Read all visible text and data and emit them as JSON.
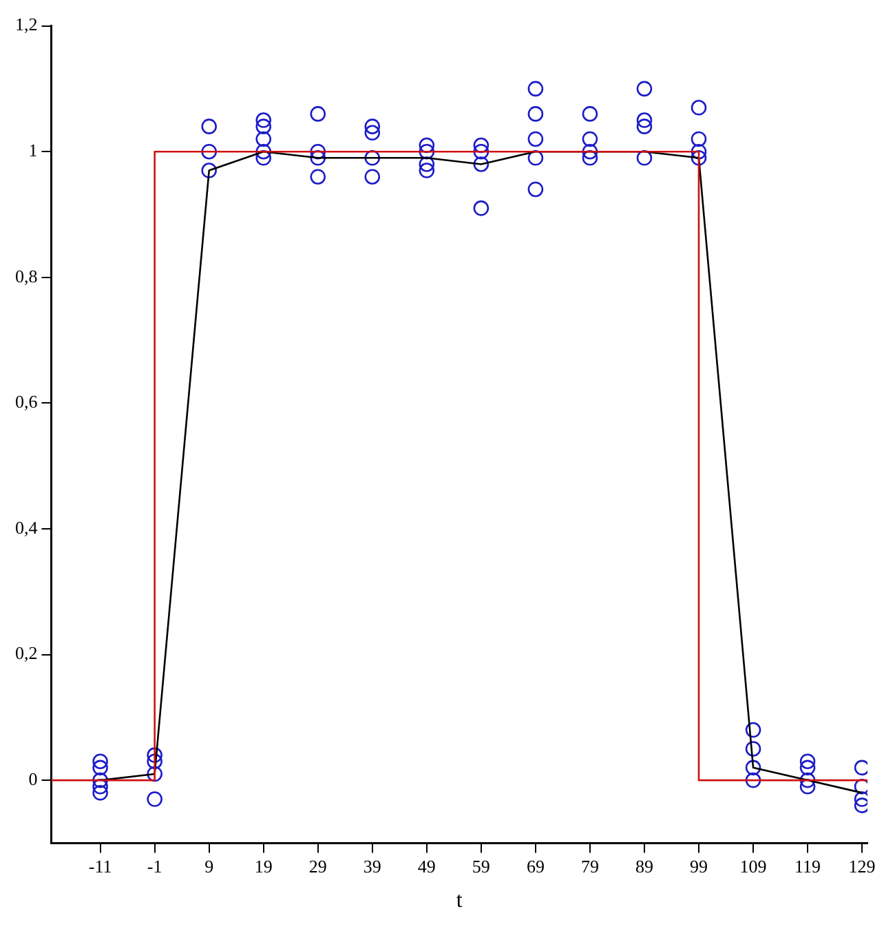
{
  "chart_data": {
    "type": "scatter",
    "xlabel": "t",
    "xlim": [
      -20,
      130
    ],
    "ylim": [
      -0.1,
      1.2
    ],
    "xticks": [
      -11,
      -1,
      9,
      19,
      29,
      39,
      49,
      59,
      69,
      79,
      89,
      99,
      109,
      119,
      129
    ],
    "yticks": [
      0,
      {
        "value": 0.2,
        "label": "0,2"
      },
      {
        "value": 0.4,
        "label": "0,4"
      },
      {
        "value": 0.6,
        "label": "0,6"
      },
      {
        "value": 0.8,
        "label": "0,8"
      },
      1,
      {
        "value": 1.2,
        "label": "1,2"
      }
    ],
    "grid": false,
    "legend": false,
    "series": [
      {
        "type": "line",
        "color": "#d01010",
        "marker": "none",
        "x": [
          -20,
          -1,
          -1,
          99,
          99,
          130
        ],
        "values": [
          0,
          0,
          1,
          1,
          0,
          0
        ]
      },
      {
        "type": "line",
        "color": "#000000",
        "marker": "none",
        "x": [
          -11,
          -1,
          9,
          19,
          29,
          39,
          49,
          59,
          69,
          79,
          89,
          99,
          109,
          119,
          129
        ],
        "values": [
          0.0,
          0.01,
          0.97,
          1.0,
          0.99,
          0.99,
          0.99,
          0.98,
          1.0,
          1.0,
          1.0,
          0.99,
          0.02,
          0.0,
          -0.02
        ]
      },
      {
        "color": "#1c1cc8",
        "marker": "circle",
        "x": [
          -11,
          -11,
          -11,
          -11,
          -11,
          -1,
          -1,
          -1,
          -1,
          9,
          9,
          9,
          19,
          19,
          19,
          19,
          19,
          29,
          29,
          29,
          29,
          39,
          39,
          39,
          39,
          49,
          49,
          49,
          49,
          59,
          59,
          59,
          59,
          69,
          69,
          69,
          69,
          69,
          79,
          79,
          79,
          79,
          89,
          89,
          89,
          89,
          99,
          99,
          99,
          99,
          109,
          109,
          109,
          109,
          119,
          119,
          119,
          119,
          129,
          129,
          129,
          129
        ],
        "values": [
          0.03,
          0.02,
          0.0,
          -0.01,
          -0.02,
          0.04,
          0.03,
          0.01,
          -0.03,
          1.04,
          1.0,
          0.97,
          1.05,
          1.04,
          1.02,
          1.0,
          0.99,
          1.06,
          1.0,
          0.99,
          0.96,
          1.04,
          1.03,
          0.99,
          0.96,
          1.01,
          1.0,
          0.98,
          0.97,
          1.01,
          1.0,
          0.98,
          0.91,
          1.1,
          1.06,
          1.02,
          0.99,
          0.94,
          1.06,
          1.02,
          1.0,
          0.99,
          1.1,
          1.05,
          1.04,
          0.99,
          1.07,
          1.02,
          1.0,
          0.99,
          0.08,
          0.05,
          0.02,
          0.0,
          0.03,
          0.02,
          0.0,
          -0.01,
          0.02,
          -0.01,
          -0.03,
          -0.04
        ]
      }
    ]
  }
}
